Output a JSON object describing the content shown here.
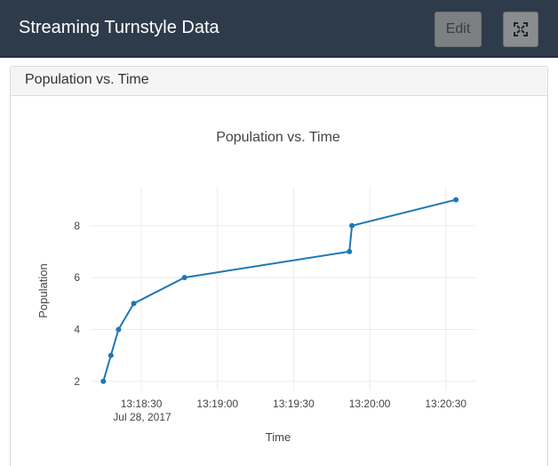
{
  "header": {
    "title": "Streaming Turnstyle Data",
    "edit_label": "Edit",
    "expand_icon": "expand-icon"
  },
  "panel": {
    "title": "Population vs. Time"
  },
  "chart_data": {
    "type": "line",
    "title": "Population vs. Time",
    "xlabel": "Time",
    "ylabel": "Population",
    "x_tick_labels": [
      "13:18:30",
      "13:19:00",
      "13:19:30",
      "13:20:00",
      "13:20:30"
    ],
    "x_date_label": "Jul 28, 2017",
    "y_ticks": [
      2,
      4,
      6,
      8
    ],
    "xlim": [
      "2017-07-28 13:18:10",
      "2017-07-28 13:20:42"
    ],
    "ylim": [
      1.65,
      9.5
    ],
    "grid": true,
    "color": "#1f77b4",
    "series": [
      {
        "x": [
          "2017-07-28 13:18:15",
          "2017-07-28 13:18:18",
          "2017-07-28 13:18:21",
          "2017-07-28 13:18:27",
          "2017-07-28 13:18:47",
          "2017-07-28 13:19:52",
          "2017-07-28 13:19:53",
          "2017-07-28 13:20:34"
        ],
        "y": [
          2,
          3,
          4,
          5,
          6,
          7,
          8,
          9
        ]
      }
    ]
  }
}
